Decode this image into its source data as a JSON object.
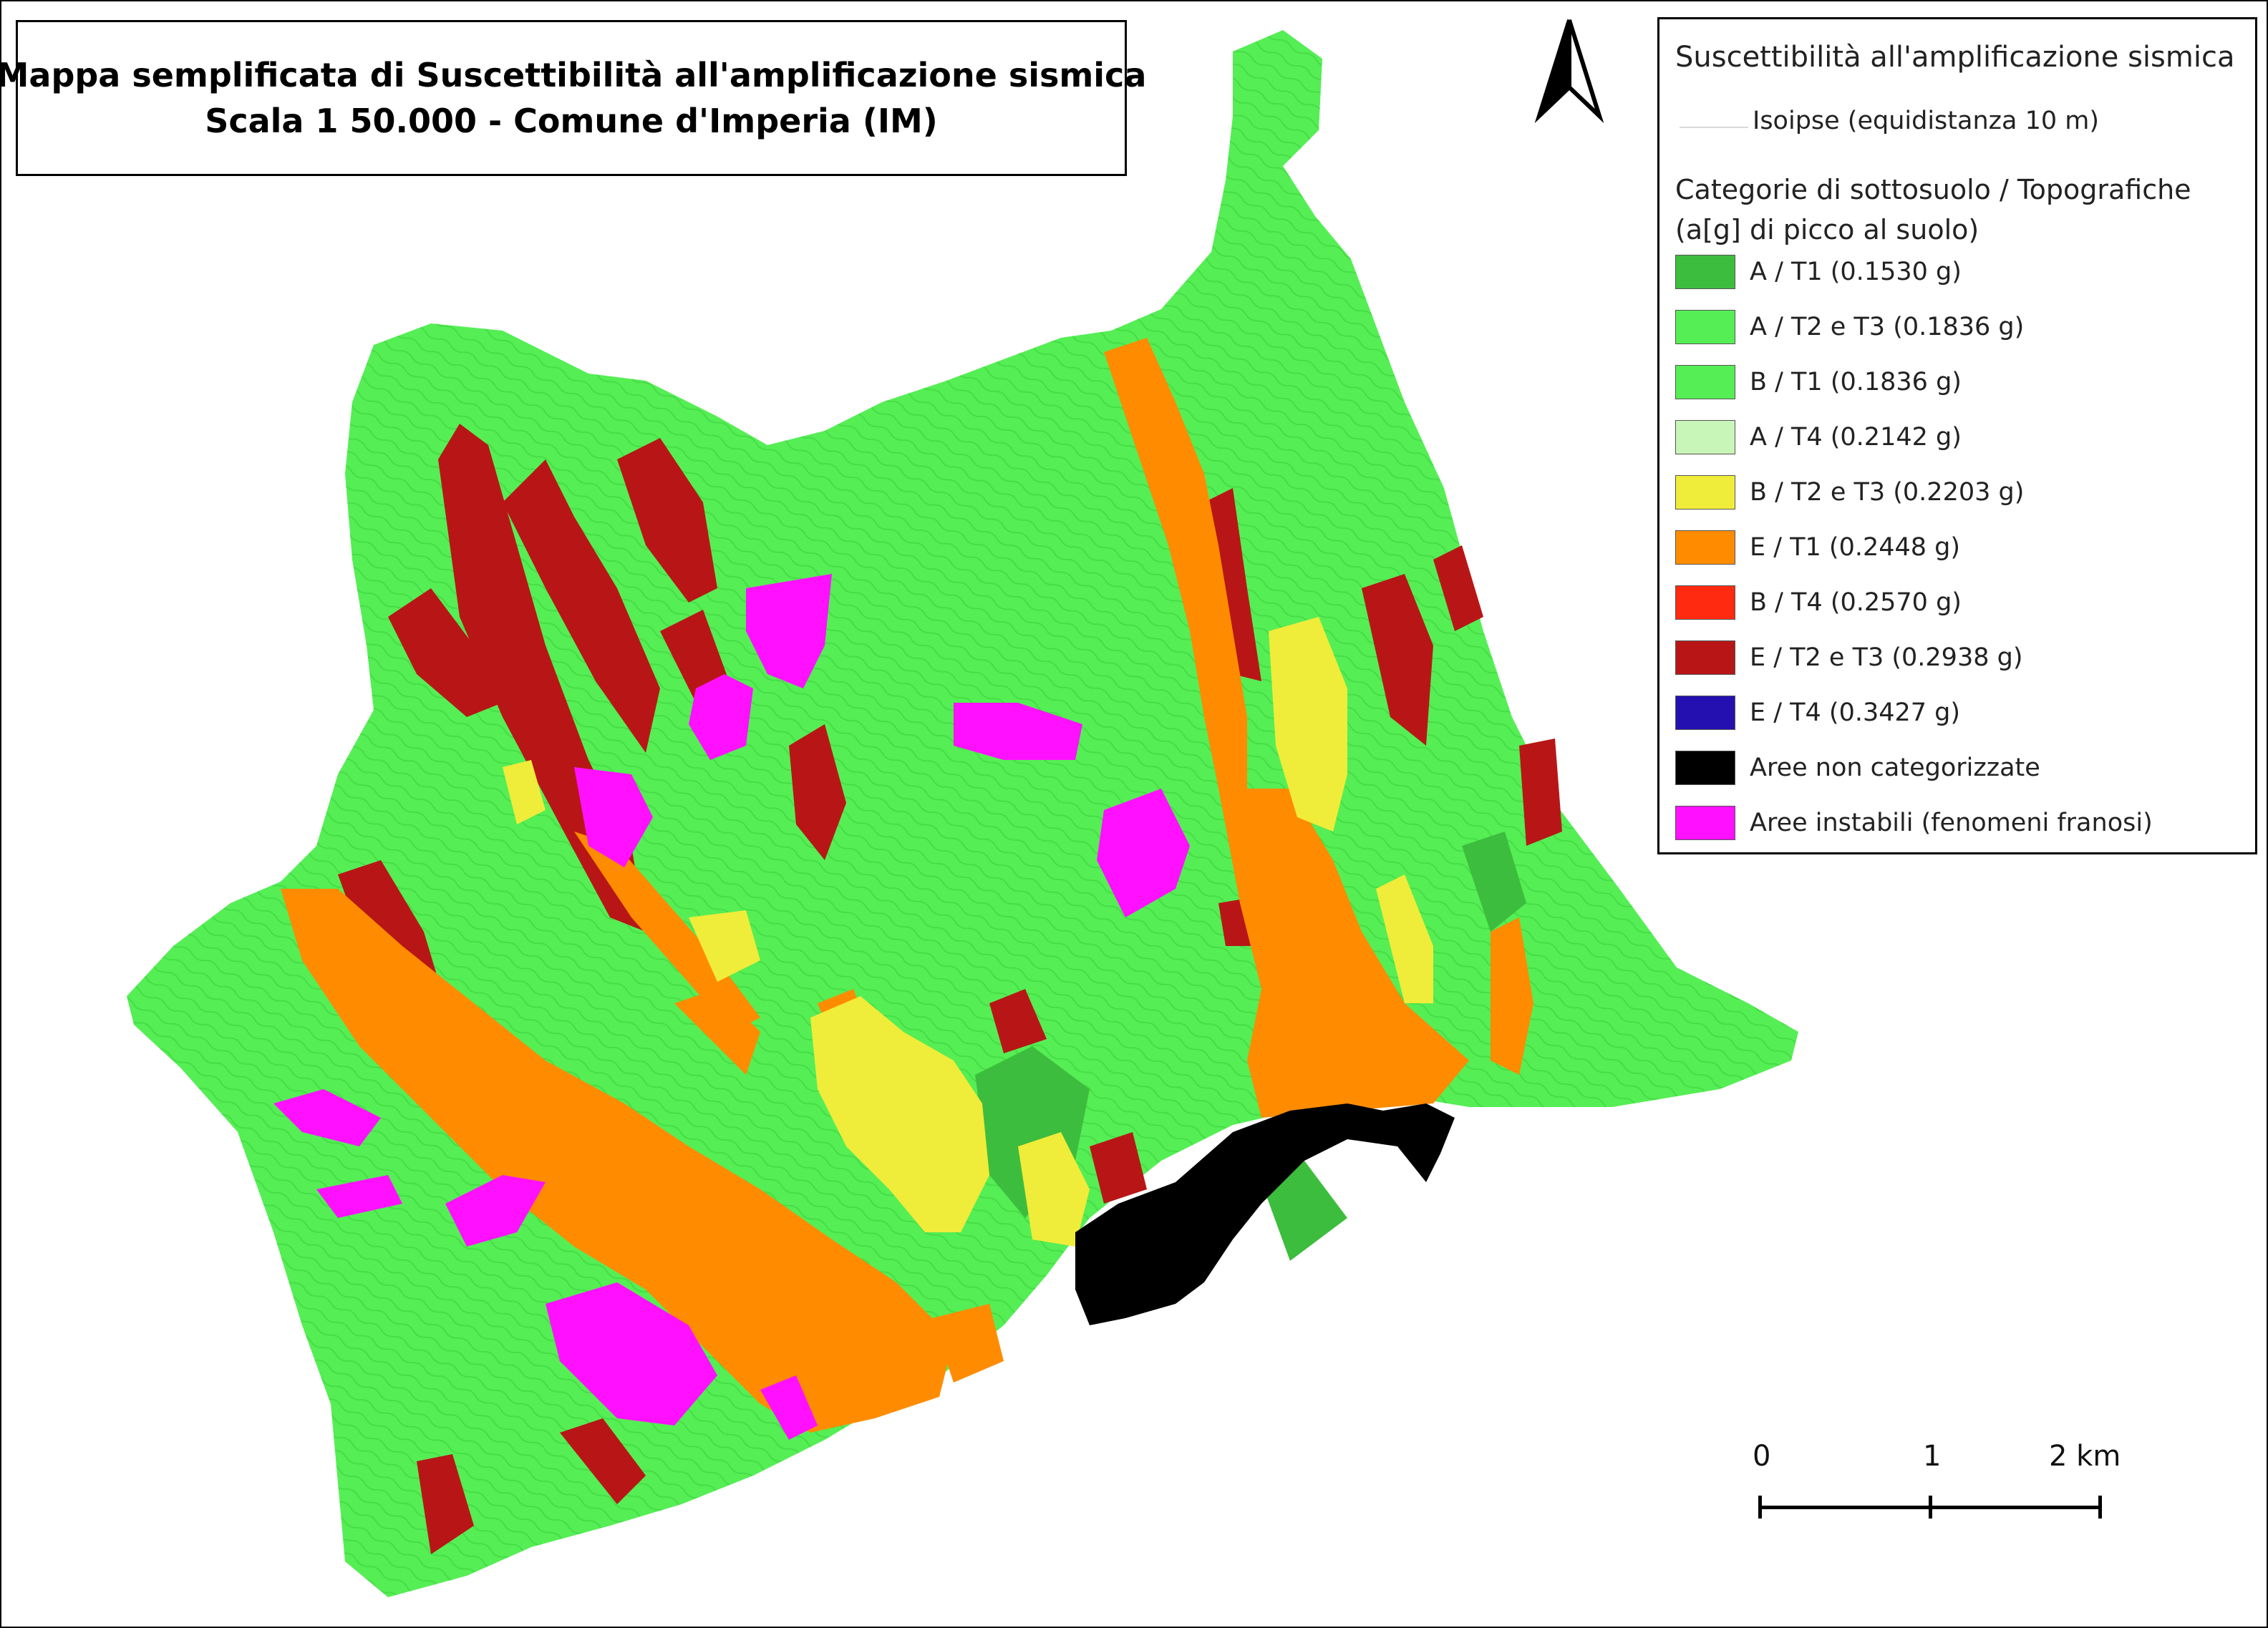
{
  "title": {
    "line1": "Mappa semplificata di Suscettibilità all'amplificazione sismica",
    "line2": "Scala 1 50.000 - Comune d'Imperia (IM)"
  },
  "legend": {
    "title": "Suscettibilità all'amplificazione sismica",
    "isolines_label": "Isoipse (equidistanza 10 m)",
    "category_title_line1": "Categorie di sottosuolo / Topografiche",
    "category_title_line2": "(a[g] di picco al suolo)",
    "items": [
      {
        "label": "A / T1 (0.1530 g)",
        "color": "#3dbd3d"
      },
      {
        "label": "A / T2 e T3 (0.1836 g)",
        "color": "#55ee55"
      },
      {
        "label": "B / T1 (0.1836 g)",
        "color": "#55ee55"
      },
      {
        "label": "A / T4 (0.2142 g)",
        "color": "#c8f5b8"
      },
      {
        "label": "B / T2 e T3 (0.2203 g)",
        "color": "#f0ec3a"
      },
      {
        "label": "E / T1 (0.2448 g)",
        "color": "#ff8c00"
      },
      {
        "label": "B / T4 (0.2570 g)",
        "color": "#ff2a10"
      },
      {
        "label": "E / T2 e T3 (0.2938 g)",
        "color": "#b81616"
      },
      {
        "label": "E / T4 (0.3427 g)",
        "color": "#2410b0"
      },
      {
        "label": "Aree non categorizzate",
        "color": "#000000"
      },
      {
        "label": "Aree instabili (fenomeni franosi)",
        "color": "#ff10ff"
      }
    ]
  },
  "scalebar": {
    "labels": [
      "0",
      "1",
      "2 km"
    ]
  },
  "north_arrow": {
    "icon": "north-arrow-icon"
  },
  "colors": {
    "background": "#ffffff",
    "green_base": "#55ee55",
    "green_dark": "#3dbd3d",
    "valley_orange": "#ff8c00",
    "ridge_red": "#b81616",
    "landslide_magenta": "#ff10ff",
    "uncategorized_black": "#000000",
    "terrace_yellow": "#f0ec3a"
  }
}
